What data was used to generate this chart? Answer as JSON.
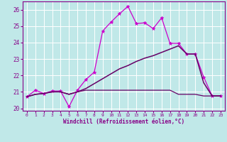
{
  "xlabel": "Windchill (Refroidissement éolien,°C)",
  "xlim": [
    -0.5,
    23.5
  ],
  "ylim": [
    19.85,
    26.5
  ],
  "yticks": [
    20,
    21,
    22,
    23,
    24,
    25,
    26
  ],
  "xticks": [
    0,
    1,
    2,
    3,
    4,
    5,
    6,
    7,
    8,
    9,
    10,
    11,
    12,
    13,
    14,
    15,
    16,
    17,
    18,
    19,
    20,
    21,
    22,
    23
  ],
  "background_color": "#c0e8e8",
  "grid_color": "#ffffff",
  "lines": [
    {
      "x": [
        0,
        1,
        2,
        3,
        4,
        5,
        6,
        7,
        8,
        9,
        10,
        11,
        12,
        13,
        14,
        15,
        16,
        17,
        18,
        19,
        20,
        21,
        22,
        23
      ],
      "y": [
        20.7,
        21.1,
        20.9,
        21.05,
        21.05,
        20.1,
        21.1,
        21.75,
        22.2,
        24.7,
        25.25,
        25.75,
        26.2,
        25.15,
        25.2,
        24.85,
        25.5,
        23.95,
        23.95,
        23.3,
        23.3,
        21.9,
        20.75,
        20.75
      ],
      "color": "#cc00cc",
      "lw": 0.9,
      "marker": "*",
      "ms": 3.5
    },
    {
      "x": [
        0,
        1,
        2,
        3,
        4,
        5,
        6,
        7,
        8,
        9,
        10,
        11,
        12,
        13,
        14,
        15,
        16,
        17,
        18,
        19,
        20,
        21,
        22,
        23
      ],
      "y": [
        20.7,
        20.85,
        20.9,
        21.0,
        21.0,
        20.85,
        21.0,
        21.2,
        21.5,
        21.8,
        22.1,
        22.4,
        22.6,
        22.85,
        23.05,
        23.2,
        23.4,
        23.6,
        23.8,
        23.3,
        23.3,
        21.55,
        20.75,
        20.75
      ],
      "color": "#660066",
      "lw": 1.1,
      "marker": null,
      "ms": 0
    },
    {
      "x": [
        0,
        1,
        2,
        3,
        4,
        5,
        6,
        7,
        8,
        9,
        10,
        11,
        12,
        13,
        14,
        15,
        16,
        17,
        18,
        19,
        20,
        21,
        22,
        23
      ],
      "y": [
        20.7,
        20.85,
        20.9,
        21.0,
        21.0,
        20.85,
        21.0,
        21.1,
        21.1,
        21.1,
        21.1,
        21.1,
        21.1,
        21.1,
        21.1,
        21.1,
        21.1,
        21.1,
        20.85,
        20.85,
        20.85,
        20.75,
        20.75,
        20.75
      ],
      "color": "#660066",
      "lw": 0.9,
      "marker": null,
      "ms": 0
    }
  ]
}
